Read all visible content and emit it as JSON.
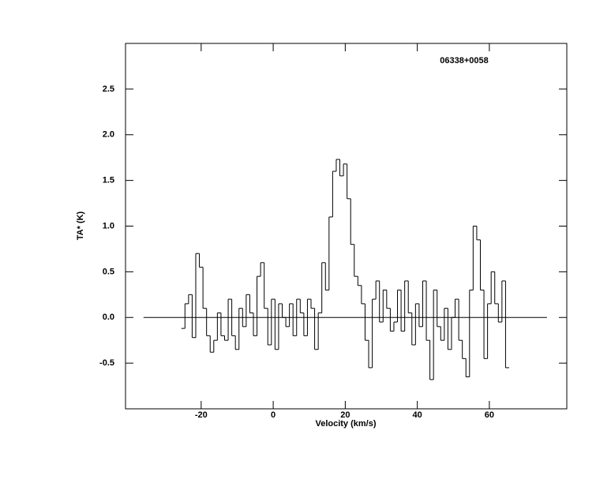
{
  "chart_data": {
    "type": "step",
    "annotation": "06338+0058",
    "xlabel": "Velocity (km/s)",
    "ylabel": "TA* (K)",
    "xlim": [
      -41,
      81.5
    ],
    "ylim": [
      -1.0,
      3.0
    ],
    "xticks": [
      -20,
      0,
      20,
      40,
      60
    ],
    "yticks": [
      -0.5,
      {
        "value": 0,
        "label": "0.0"
      },
      0.5,
      {
        "value": 1,
        "label": "1.0"
      },
      1.5,
      {
        "value": 2,
        "label": "2.0"
      },
      2.5
    ],
    "hline": {
      "y": 0,
      "x": [
        -36,
        76
      ]
    },
    "color": "#000000",
    "x": [
      -25,
      -24,
      -23,
      -22,
      -21,
      -20,
      -19,
      -18,
      -17,
      -16,
      -15,
      -14,
      -13,
      -12,
      -11,
      -10,
      -9,
      -8,
      -7,
      -6,
      -5,
      -4,
      -3,
      -2,
      -1,
      0,
      1,
      2,
      3,
      4,
      5,
      6,
      7,
      8,
      9,
      10,
      11,
      12,
      13,
      14,
      15,
      16,
      17,
      18,
      19,
      20,
      21,
      22,
      23,
      24,
      25,
      26,
      27,
      28,
      29,
      30,
      31,
      32,
      33,
      34,
      35,
      36,
      37,
      38,
      39,
      40,
      41,
      42,
      43,
      44,
      45,
      46,
      47,
      48,
      49,
      50,
      51,
      52,
      53,
      54,
      55,
      56,
      57,
      58,
      59,
      60,
      61,
      62,
      63,
      64,
      65
    ],
    "values": [
      -0.12,
      0.15,
      0.25,
      -0.22,
      0.7,
      0.55,
      0.1,
      -0.2,
      -0.38,
      -0.25,
      0.05,
      -0.2,
      -0.25,
      0.2,
      -0.2,
      -0.35,
      0.1,
      -0.1,
      0.25,
      0.05,
      -0.2,
      0.45,
      0.6,
      0.1,
      -0.3,
      0.2,
      -0.35,
      0.15,
      0.0,
      -0.1,
      0.15,
      -0.2,
      0.2,
      0.05,
      -0.2,
      0.2,
      0.1,
      -0.35,
      0.05,
      0.6,
      0.3,
      1.1,
      1.6,
      1.73,
      1.55,
      1.68,
      1.3,
      0.8,
      0.45,
      0.35,
      0.15,
      -0.25,
      -0.55,
      0.2,
      0.4,
      -0.05,
      0.3,
      0.1,
      -0.15,
      -0.05,
      0.3,
      -0.15,
      0.4,
      0.05,
      -0.3,
      0.15,
      -0.1,
      0.4,
      -0.25,
      -0.68,
      0.3,
      -0.1,
      -0.25,
      0.1,
      -0.35,
      0.0,
      0.2,
      -0.25,
      -0.45,
      -0.65,
      0.3,
      1.0,
      0.85,
      0.3,
      -0.45,
      0.15,
      0.5,
      0.15,
      -0.05,
      0.4,
      -0.55
    ]
  }
}
